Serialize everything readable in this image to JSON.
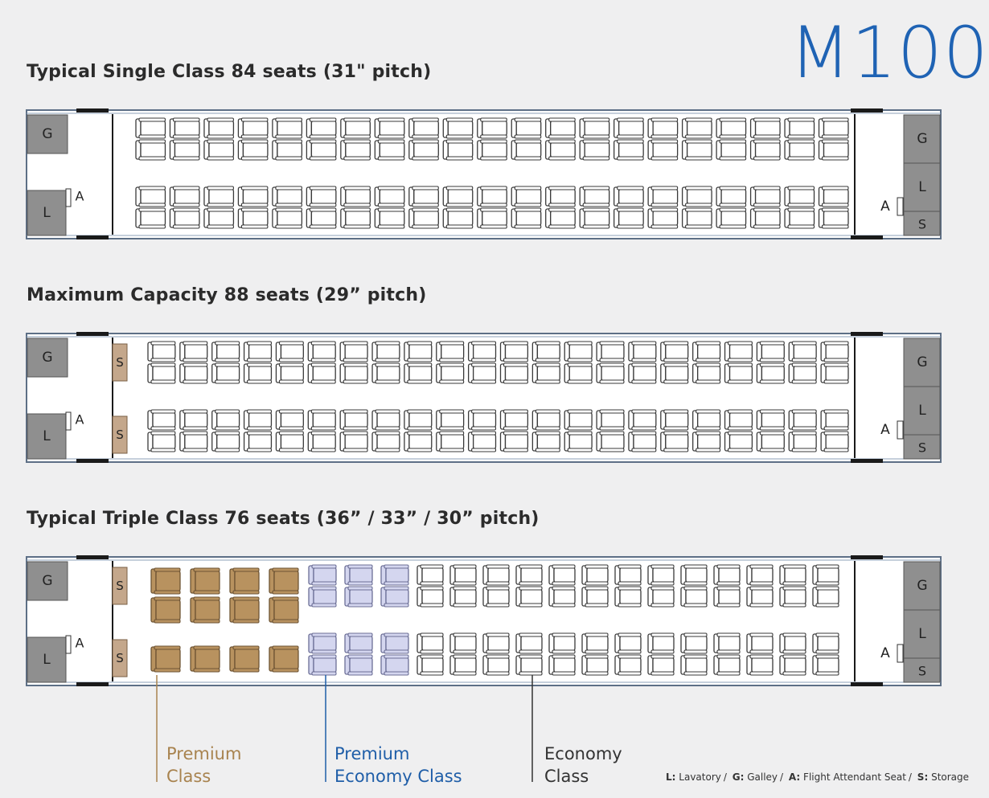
{
  "model": "M100",
  "layouts": [
    {
      "title": "Typical Single Class 84 seats (31\" pitch)",
      "sections": [
        {
          "class": "economy",
          "rows": 21
        }
      ],
      "front": {
        "galley": "G",
        "lavatory": "L",
        "attendant": "A",
        "storage": []
      },
      "rear": {
        "galley": "G",
        "lavatory": "L",
        "storage": "S",
        "attendant": "A"
      }
    },
    {
      "title": "Maximum Capacity 88 seats (29” pitch)",
      "sections": [
        {
          "class": "economy",
          "rows": 22
        }
      ],
      "front": {
        "galley": "G",
        "lavatory": "L",
        "attendant": "A",
        "storage": [
          "S",
          "S"
        ]
      },
      "rear": {
        "galley": "G",
        "lavatory": "L",
        "storage": "S",
        "attendant": "A"
      }
    },
    {
      "title": "Typical Triple Class 76 seats (36” / 33” / 30” pitch)",
      "sections": [
        {
          "class": "premium",
          "rows": 4
        },
        {
          "class": "premium_economy",
          "rows": 3
        },
        {
          "class": "economy",
          "rows": 13
        }
      ],
      "front": {
        "galley": "G",
        "lavatory": "L",
        "attendant": "A",
        "storage": [
          "S",
          "S"
        ]
      },
      "rear": {
        "galley": "G",
        "lavatory": "L",
        "storage": "S",
        "attendant": "A"
      }
    }
  ],
  "legend": {
    "premium": {
      "line1": "Premium",
      "line2": "Class",
      "color": "#a8834f"
    },
    "premium_economy": {
      "line1": "Premium",
      "line2": "Economy Class",
      "color": "#1f5ea8"
    },
    "economy": {
      "line1": "Economy",
      "line2": "Class",
      "color": "#333333"
    }
  },
  "key": {
    "l_code": "L:",
    "l_text": "Lavatory",
    "g_code": "G:",
    "g_text": "Galley",
    "a_code": "A:",
    "a_text": "Flight Attendant Seat",
    "s_code": "S:",
    "s_text": "Storage"
  },
  "colors": {
    "accent": "#1f63b4",
    "premium_seat": "#b8925f",
    "premium_economy_seat": "#d4d6ef",
    "economy_seat": "#ffffff",
    "galley_fill": "#8f8f8f",
    "storage_fill": "#c4a78b"
  }
}
